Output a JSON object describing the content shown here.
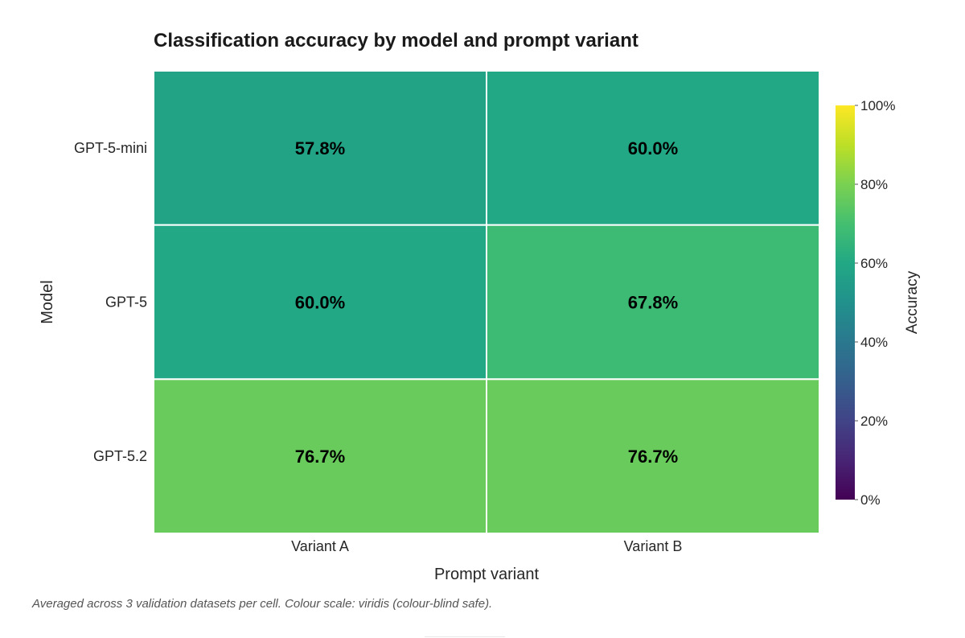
{
  "chart_data": {
    "type": "heatmap",
    "title": "Classification accuracy by model and prompt variant",
    "xlabel": "Prompt variant",
    "ylabel": "Model",
    "x_categories": [
      "Variant A",
      "Variant B"
    ],
    "y_categories": [
      "GPT-5-mini",
      "GPT-5",
      "GPT-5.2"
    ],
    "values": [
      [
        57.8,
        60.0
      ],
      [
        60.0,
        67.8
      ],
      [
        76.7,
        76.7
      ]
    ],
    "cell_labels": [
      [
        "57.8%",
        "60.0%"
      ],
      [
        "60.0%",
        "67.8%"
      ],
      [
        "76.7%",
        "76.7%"
      ]
    ],
    "colorbar": {
      "label": "Accuracy",
      "range": [
        0,
        100
      ],
      "ticks": [
        0,
        20,
        40,
        60,
        80,
        100
      ],
      "tick_labels": [
        "0%",
        "20%",
        "40%",
        "60%",
        "80%",
        "100%"
      ],
      "colormap": "viridis"
    },
    "footnote": "Averaged across 3 validation datasets per cell. Colour scale: viridis (colour-blind safe)."
  }
}
